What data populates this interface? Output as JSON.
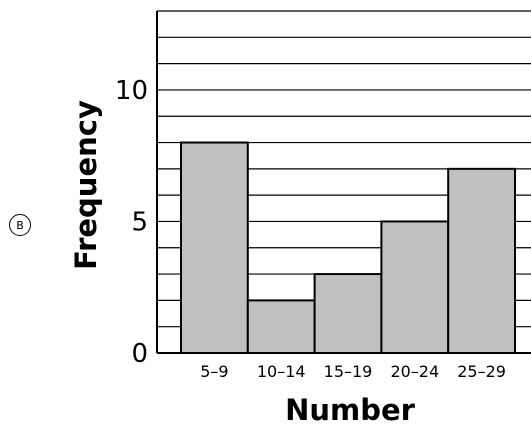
{
  "option_label": "B",
  "chart_data": {
    "type": "bar",
    "categories": [
      "5–9",
      "10–14",
      "15–19",
      "20–24",
      "25–29"
    ],
    "values": [
      8,
      2,
      3,
      5,
      7
    ],
    "xlabel": "Number",
    "ylabel": "Frequency",
    "ylim": [
      0,
      13
    ],
    "yticks": [
      0,
      5,
      10
    ],
    "grid": true,
    "bar_color": "#c0c0c0",
    "line_color": "#000000"
  }
}
